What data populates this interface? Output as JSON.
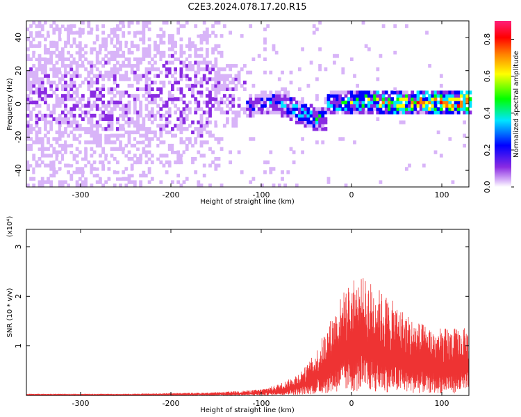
{
  "title": "C2E3.2024.078.17.20.R15",
  "chart_data": [
    {
      "type": "heatmap",
      "xlabel": "Height of straight line (km)",
      "ylabel": "Frequency (Hz)",
      "xlim": [
        -360,
        130
      ],
      "ylim": [
        -50,
        50
      ],
      "x_ticks": [
        -300,
        -200,
        -100,
        0,
        100
      ],
      "y_ticks": [
        -40,
        -20,
        0,
        20,
        40
      ],
      "colorbar": {
        "label": "Normalized spectral amplitude",
        "range": [
          0.0,
          0.9
        ],
        "ticks": [
          "0.0",
          "0.2",
          "0.4",
          "0.6",
          "0.8"
        ],
        "colormap": [
          "#ffffff",
          "#d8b4f8",
          "#8a2be2",
          "#0000ff",
          "#00e5ff",
          "#00ff00",
          "#ffff00",
          "#ff8000",
          "#ff0000",
          "#ff1f7a"
        ]
      },
      "grid": false
    },
    {
      "type": "line",
      "xlabel": "Height of straight line (km)",
      "ylabel": "SNR (10 * v/v)",
      "y_multiplier": "(x10⁴)",
      "xlim": [
        -360,
        130
      ],
      "ylim": [
        0,
        3.35
      ],
      "x_ticks": [
        -300,
        -200,
        -100,
        0,
        100
      ],
      "y_ticks": [
        1,
        2,
        3
      ],
      "series_color": "#ee3333",
      "series": [
        {
          "x": [
            -360,
            -300,
            -250,
            -200,
            -150,
            -120,
            -100,
            -90,
            -80,
            -70,
            -60,
            -50,
            -40,
            -30,
            -20,
            -10,
            0,
            10,
            20,
            30,
            40,
            50,
            60,
            70,
            80,
            90,
            100,
            110,
            120,
            130
          ],
          "y": [
            0.02,
            0.02,
            0.02,
            0.03,
            0.04,
            0.06,
            0.08,
            0.11,
            0.15,
            0.2,
            0.28,
            0.38,
            0.55,
            0.8,
            1.05,
            1.3,
            1.45,
            1.5,
            1.45,
            1.35,
            1.25,
            1.15,
            1.05,
            0.95,
            0.9,
            0.85,
            0.85,
            0.85,
            0.85,
            0.85
          ]
        }
      ]
    }
  ]
}
